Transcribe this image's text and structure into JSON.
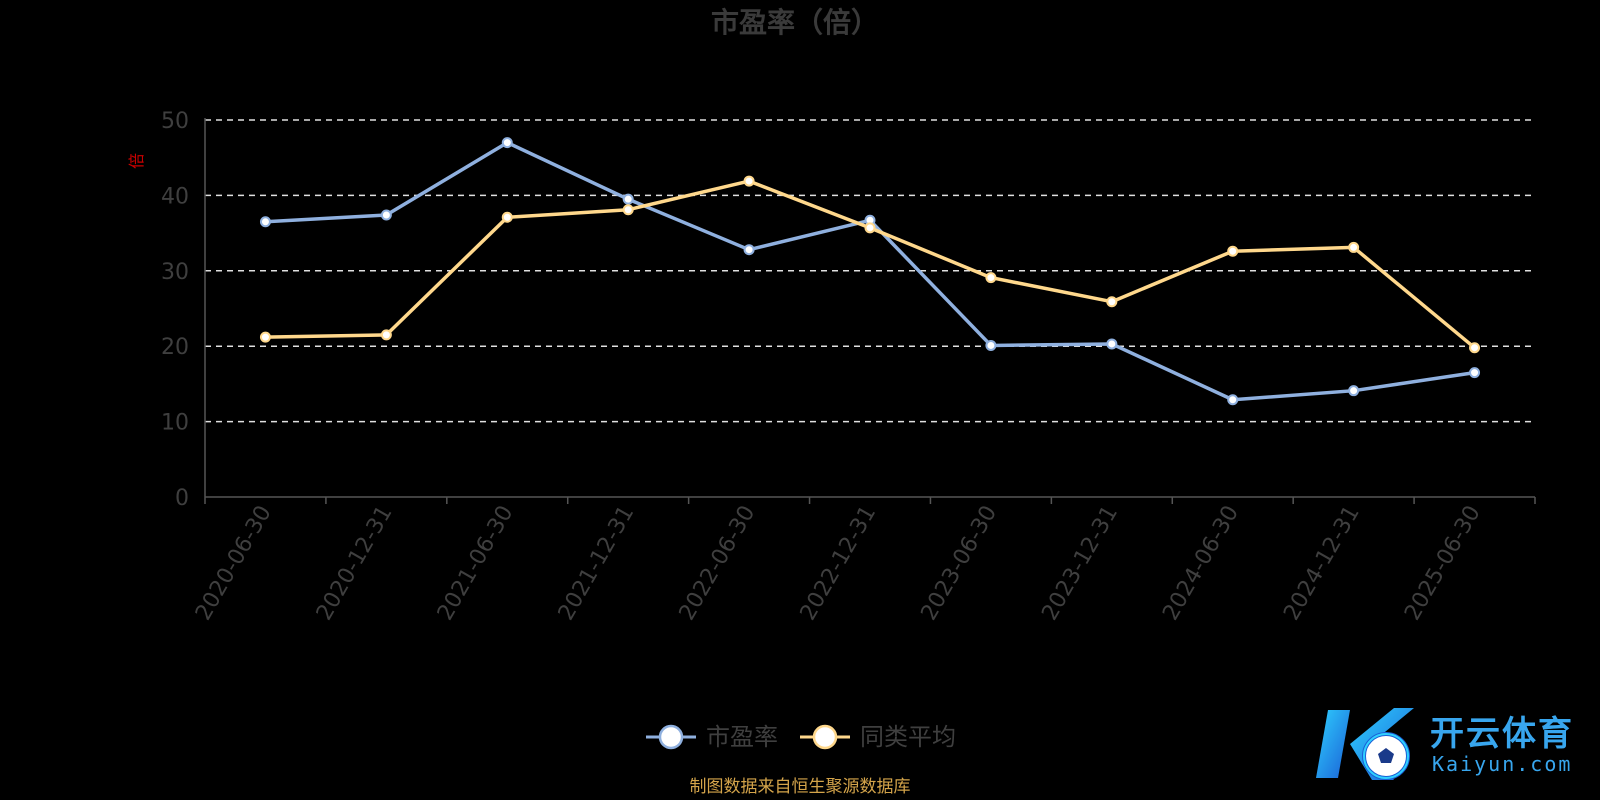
{
  "chart_data": {
    "type": "line",
    "title": "市盈率（倍）",
    "ylabel": "倍",
    "ylim": [
      0,
      50
    ],
    "yticks": [
      "0",
      "10",
      "20",
      "30",
      "40",
      "50"
    ],
    "categories": [
      "2020-06-30",
      "2020-12-31",
      "2021-06-30",
      "2021-12-31",
      "2022-06-30",
      "2022-12-31",
      "2023-06-30",
      "2023-12-31",
      "2024-06-30",
      "2024-12-31",
      "2025-06-30"
    ],
    "series": [
      {
        "name": "市盈率",
        "color": "#8fb0df",
        "values": [
          36.5,
          37.4,
          47.0,
          39.5,
          32.8,
          36.7,
          20.1,
          20.3,
          12.9,
          14.1,
          16.5
        ]
      },
      {
        "name": "同类平均",
        "color": "#ffd88c",
        "values": [
          21.2,
          21.5,
          37.1,
          38.1,
          41.9,
          35.7,
          29.1,
          25.9,
          32.6,
          33.1,
          19.8
        ]
      }
    ],
    "grid": true,
    "legend_position": "bottom-center"
  },
  "source_note": "制图数据来自恒生聚源数据库",
  "watermark": {
    "cn": "开云体育",
    "en": "Kaiyun.com"
  }
}
